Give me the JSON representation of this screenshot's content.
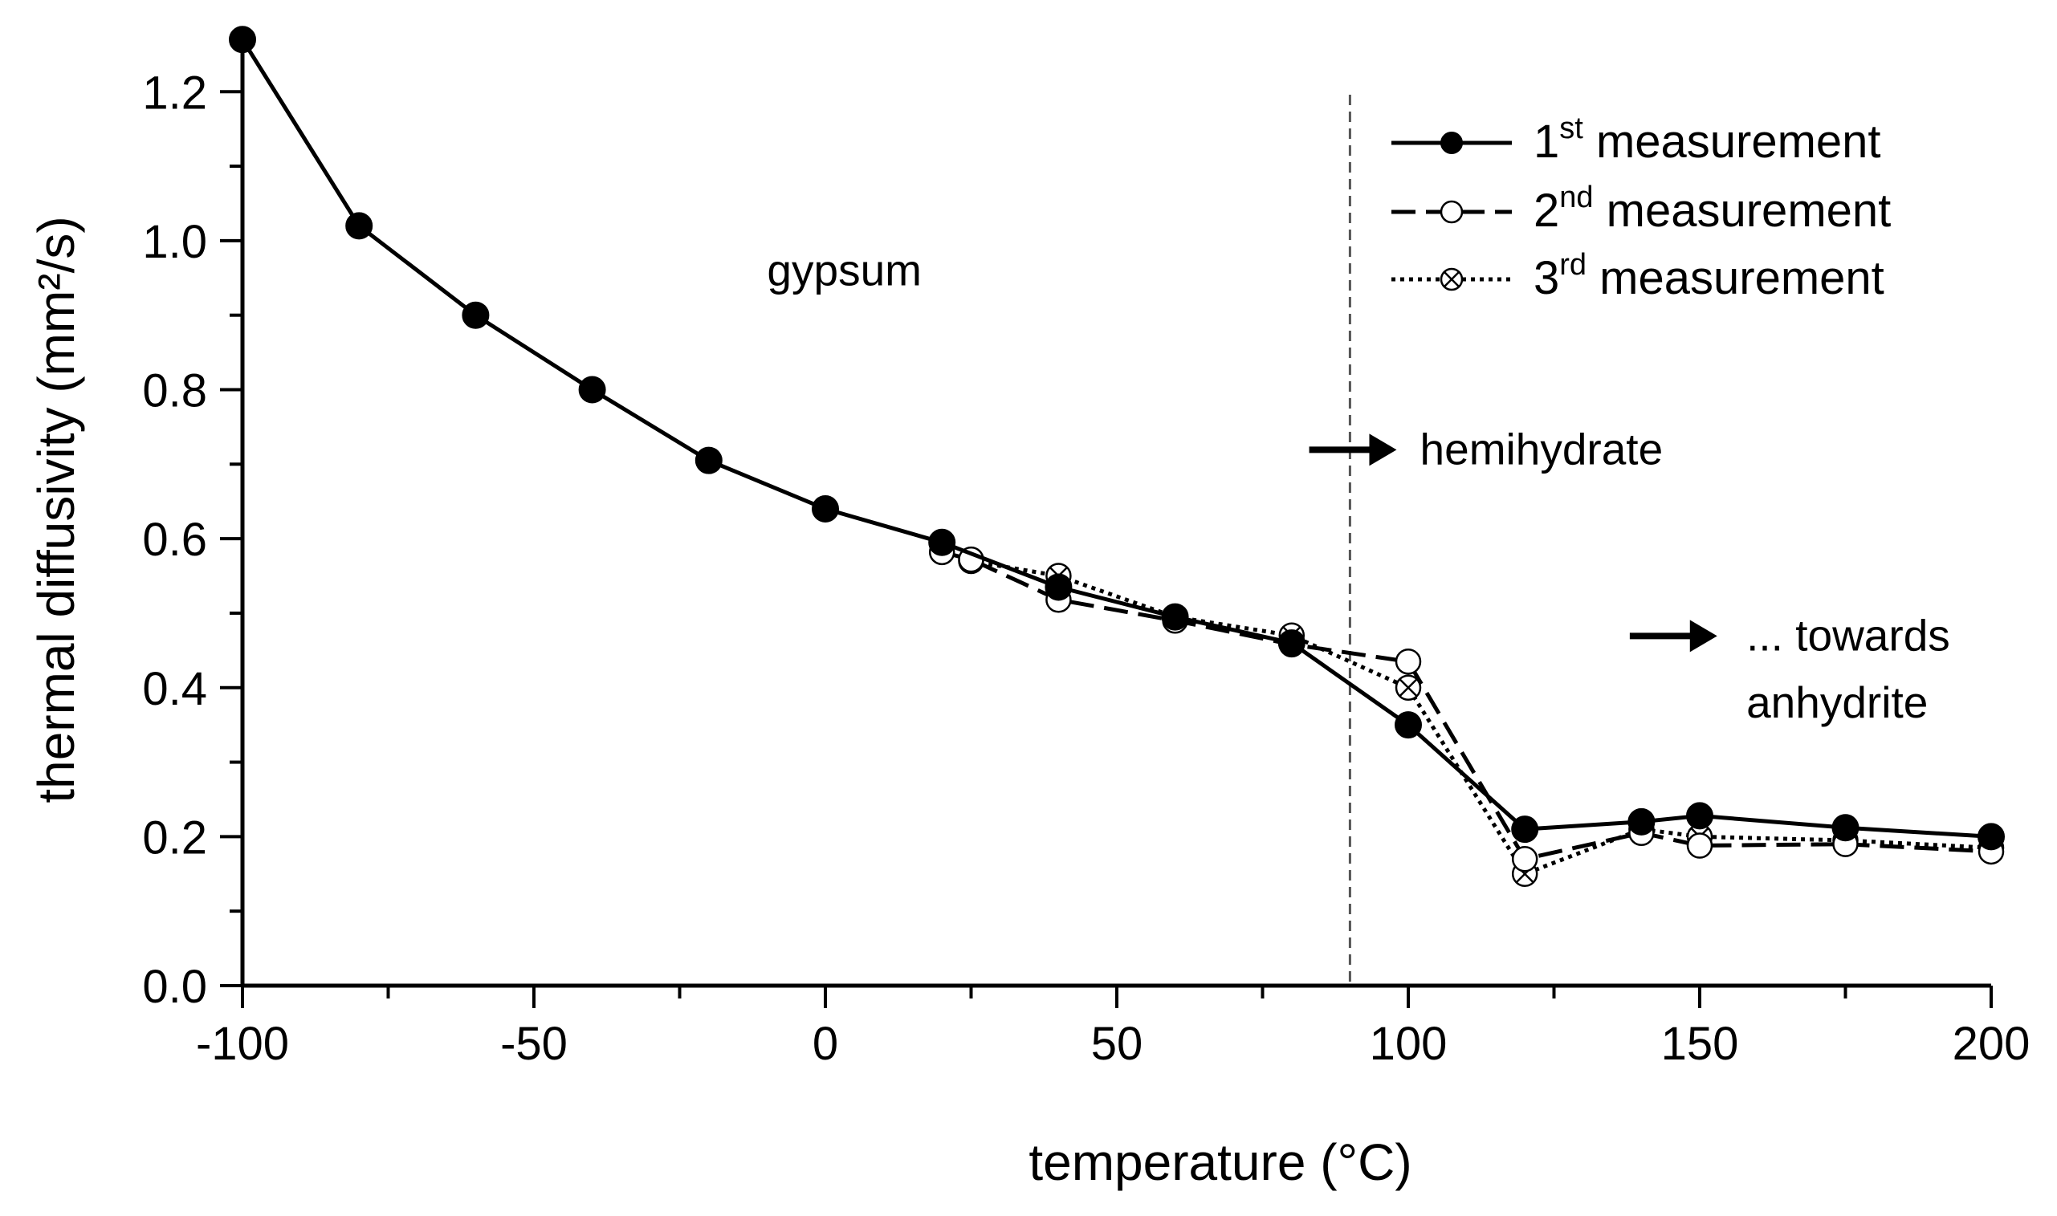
{
  "chart_data": {
    "type": "line",
    "xlabel": "temperature (°C)",
    "ylabel": "thermal diffusivity (mm²/s)",
    "xlim": [
      -100,
      200
    ],
    "ylim": [
      0.0,
      1.28
    ],
    "xticks": [
      -100,
      -50,
      0,
      50,
      100,
      150,
      200
    ],
    "xtick_labels": [
      "-100",
      "-50",
      "0",
      "50",
      "100",
      "150",
      "200"
    ],
    "yticks": [
      0.0,
      0.2,
      0.4,
      0.6,
      0.8,
      1.0,
      1.2
    ],
    "ytick_labels": [
      "0.0",
      "0.2",
      "0.4",
      "0.6",
      "0.8",
      "1.0",
      "1.2"
    ],
    "grid": false,
    "legend_position": "top-right",
    "series": [
      {
        "name": "1st measurement",
        "name_base": "1",
        "name_sup": "st",
        "name_rest": " measurement",
        "line_style": "solid",
        "marker": "filled-circle",
        "x": [
          -100,
          -80,
          -60,
          -40,
          -20,
          0,
          20,
          40,
          60,
          80,
          100,
          120,
          140,
          150,
          175,
          200
        ],
        "y": [
          1.27,
          1.02,
          0.9,
          0.8,
          0.705,
          0.64,
          0.595,
          0.535,
          0.495,
          0.46,
          0.35,
          0.21,
          0.22,
          0.228,
          0.212,
          0.2
        ]
      },
      {
        "name": "2nd measurement",
        "name_base": "2",
        "name_sup": "nd",
        "name_rest": " measurement",
        "line_style": "dashed",
        "marker": "open-circle",
        "x": [
          20,
          25,
          40,
          60,
          80,
          100,
          120,
          140,
          150,
          175,
          200
        ],
        "y": [
          0.582,
          0.572,
          0.518,
          0.49,
          0.458,
          0.435,
          0.17,
          0.205,
          0.188,
          0.19,
          0.18
        ]
      },
      {
        "name": "3rd measurement",
        "name_base": "3",
        "name_sup": "rd",
        "name_rest": " measurement",
        "line_style": "dotted",
        "marker": "crossed-circle",
        "x": [
          25,
          40,
          60,
          80,
          100,
          120,
          140,
          150,
          175,
          200
        ],
        "y": [
          0.57,
          0.55,
          0.495,
          0.47,
          0.4,
          0.15,
          0.21,
          0.2,
          0.195,
          0.185
        ]
      }
    ],
    "reference_line": {
      "orientation": "vertical",
      "x": 90,
      "style": "dashed",
      "color": "#555555"
    },
    "annotations": [
      {
        "text": "gypsum",
        "x": -10,
        "y": 0.94,
        "arrow": false
      },
      {
        "text": "hemihydrate",
        "x": 102,
        "y": 0.7,
        "arrow": true,
        "arrow_from_x": 83,
        "arrow_to_x": 98
      },
      {
        "text": "... towards",
        "x": 158,
        "y": 0.45,
        "arrow": true,
        "arrow_from_x": 138,
        "arrow_to_x": 153
      },
      {
        "text": "anhydrite",
        "x": 158,
        "y": 0.36,
        "arrow": false
      }
    ]
  },
  "colors": {
    "axis": "#000000",
    "series": "#000000",
    "reference_line": "#555555",
    "background": "#ffffff"
  }
}
